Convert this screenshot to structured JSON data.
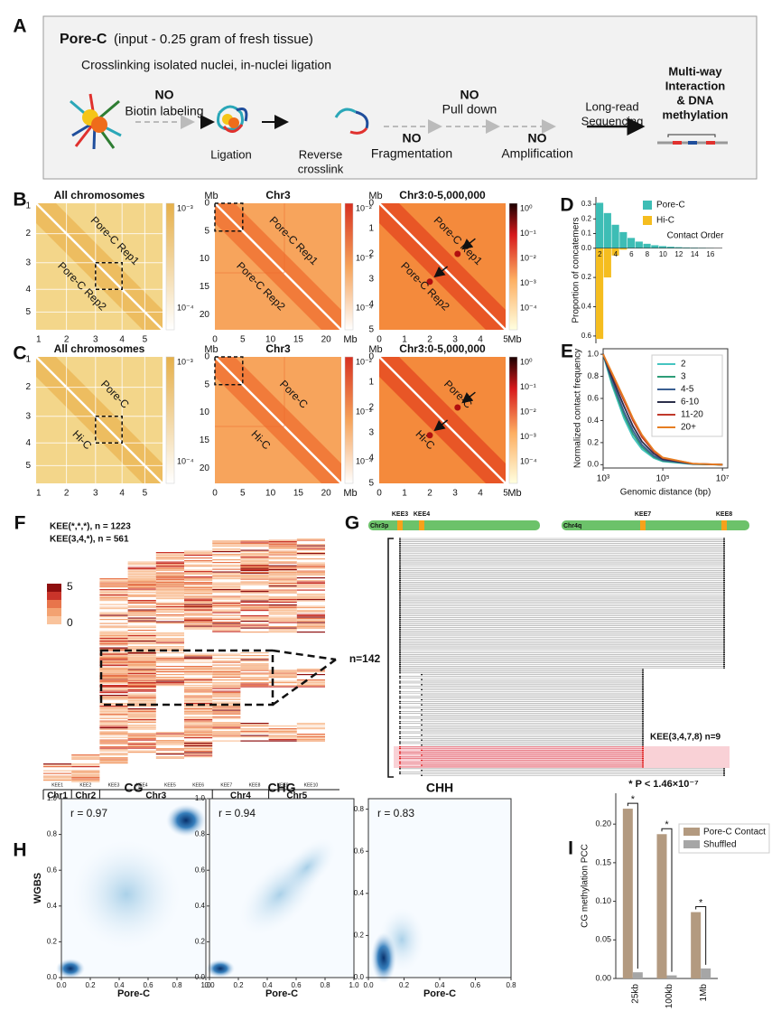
{
  "panel_labels": [
    "A",
    "B",
    "C",
    "D",
    "E",
    "F",
    "G",
    "H",
    "I"
  ],
  "schematic": {
    "title": "Pore-C",
    "subtitle": "(input - 0.25 gram of fresh tissue)",
    "note": "Crosslinking isolated nuclei, in-nuclei ligation",
    "ligation": "Ligation",
    "reverse_crosslink": [
      "Reverse",
      "crosslink"
    ],
    "skipped": [
      {
        "no": "NO",
        "label": "Biotin labeling"
      },
      {
        "no": "NO",
        "label": "Fragmentation"
      },
      {
        "no": "NO",
        "label": "Pull down"
      },
      {
        "no": "NO",
        "label": "Amplification"
      }
    ],
    "sequencing": [
      "Long-read",
      "Sequencing"
    ],
    "output_red": [
      "Multi-way",
      "Interaction"
    ],
    "output_black": [
      "& DNA",
      "methylation"
    ]
  },
  "contact_maps": {
    "B": [
      {
        "title": "All chromosomes",
        "ticks": [
          "1",
          "2",
          "3",
          "4",
          "5"
        ],
        "colorbar": [
          "10⁻³",
          "10⁻⁴"
        ],
        "upper": "Pore-C Rep1",
        "lower": "Pore-C Rep2"
      },
      {
        "title": "Chr3",
        "unit": "Mb",
        "ticks": [
          "0",
          "5",
          "10",
          "15",
          "20"
        ],
        "colorbar": [
          "10⁻²",
          "10⁻³",
          "10⁻⁴"
        ],
        "upper": "Pore-C Rep1",
        "lower": "Pore-C Rep2"
      },
      {
        "title": "Chr3:0-5,000,000",
        "unit": "Mb",
        "ticks": [
          "0",
          "1",
          "2",
          "3",
          "4",
          "5"
        ],
        "colorbar": [
          "10⁰",
          "10⁻¹",
          "10⁻²",
          "10⁻³",
          "10⁻⁴"
        ],
        "upper": "Pore-C Rep1",
        "lower": "Pore-C Rep2"
      }
    ],
    "C": [
      {
        "title": "All chromosomes",
        "ticks": [
          "1",
          "2",
          "3",
          "4",
          "5"
        ],
        "colorbar": [
          "10⁻³",
          "10⁻⁴"
        ],
        "upper": "Pore-C",
        "lower": "Hi-C"
      },
      {
        "title": "Chr3",
        "unit": "Mb",
        "ticks": [
          "0",
          "5",
          "10",
          "15",
          "20"
        ],
        "colorbar": [
          "10⁻²",
          "10⁻³",
          "10⁻⁴"
        ],
        "upper": "Pore-C",
        "lower": "Hi-C"
      },
      {
        "title": "Chr3:0-5,000,000",
        "unit": "Mb",
        "ticks": [
          "0",
          "1",
          "2",
          "3",
          "4",
          "5"
        ],
        "colorbar": [
          "10⁰",
          "10⁻¹",
          "10⁻²",
          "10⁻³",
          "10⁻⁴"
        ],
        "upper": "Pore-C",
        "lower": "Hi-C"
      }
    ]
  },
  "kee_heatmap": {
    "labels": [
      "KEE(*,*,*), n = 1223",
      "KEE(3,4,*), n = 561"
    ],
    "scale": [
      "5",
      "0"
    ],
    "columns": [
      "KEE1",
      "KEE2",
      "KEE3",
      "KEE4",
      "KEE5",
      "KEE6",
      "KEE7",
      "KEE8",
      "KEE9",
      "KEE10"
    ],
    "chromosomes": [
      "Chr1",
      "Chr2",
      "Chr3",
      "Chr4",
      "Chr5"
    ]
  },
  "reads": {
    "arms": [
      "Chr3p",
      "Chr4q"
    ],
    "elements": [
      "KEE3",
      "KEE4",
      "KEE7",
      "KEE8"
    ],
    "count": "n=142",
    "subset": "KEE(3,4,7,8) n=9"
  },
  "chart_data": [
    {
      "type": "bar",
      "categories": [
        "2",
        null,
        "4",
        null,
        "6",
        null,
        "8",
        null,
        "10",
        null,
        "12",
        null,
        "14",
        null,
        "16",
        null
      ],
      "series": [
        {
          "name": "Pore-C",
          "color": "#3dbdb5",
          "values": [
            0.31,
            0.24,
            0.16,
            0.11,
            0.07,
            0.045,
            0.03,
            0.02,
            0.014,
            0.01,
            0.007,
            0.005,
            0.004,
            0.003,
            0.002,
            0.001
          ]
        },
        {
          "name": "Hi-C",
          "color": "#f5bd1f",
          "values": [
            -0.62,
            -0.2,
            -0.05,
            -0.01,
            0,
            0,
            0,
            0,
            0,
            0,
            0,
            0,
            0,
            0,
            0,
            0
          ]
        }
      ],
      "x_label": "Contact Order",
      "y_label": "Proportion of concatemers",
      "ylim": [
        -0.65,
        0.35
      ],
      "yticks": [
        0.3,
        0.2,
        0.1,
        {
          "value": 0,
          "label": "0.0"
        },
        {
          "value": -0.2,
          "label": "0.2"
        },
        {
          "value": -0.4,
          "label": "0.4"
        },
        {
          "value": -0.6,
          "label": "0.6"
        }
      ],
      "legend": "upper right"
    },
    {
      "type": "line",
      "x": [
        1000,
        2000,
        5000,
        10000,
        20000,
        50000,
        100000,
        1000000,
        10000000
      ],
      "series": [
        {
          "name": "2",
          "color": "#45c4c0",
          "values": [
            1.0,
            0.72,
            0.42,
            0.25,
            0.14,
            0.06,
            0.03,
            0.005,
            0.0
          ]
        },
        {
          "name": "3",
          "color": "#2e9d78",
          "values": [
            1.0,
            0.74,
            0.45,
            0.28,
            0.16,
            0.07,
            0.035,
            0.006,
            0.0
          ]
        },
        {
          "name": "4-5",
          "color": "#3b5f92",
          "values": [
            1.0,
            0.76,
            0.48,
            0.31,
            0.18,
            0.08,
            0.04,
            0.007,
            0.0
          ]
        },
        {
          "name": "6-10",
          "color": "#2b2f4a",
          "values": [
            1.0,
            0.79,
            0.53,
            0.35,
            0.21,
            0.1,
            0.05,
            0.008,
            0.0
          ]
        },
        {
          "name": "11-20",
          "color": "#c0392b",
          "values": [
            1.0,
            0.82,
            0.58,
            0.4,
            0.25,
            0.12,
            0.06,
            0.01,
            0.0
          ]
        },
        {
          "name": "20+",
          "color": "#e67e22",
          "values": [
            1.0,
            0.83,
            0.6,
            0.42,
            0.27,
            0.13,
            0.065,
            0.01,
            0.0
          ]
        }
      ],
      "x_log": true,
      "xlim": [
        1000,
        15000000
      ],
      "xticks": [
        {
          "value": 1000,
          "label": "10³"
        },
        {
          "value": 100000,
          "label": "10⁵"
        },
        {
          "value": 10000000,
          "label": "10⁷"
        }
      ],
      "ylim": [
        -0.03,
        1.05
      ],
      "yticks": [
        {
          "value": 0,
          "label": "0.0"
        },
        0.2,
        0.4,
        0.6,
        0.8,
        {
          "value": 1,
          "label": "1.0"
        }
      ],
      "x_label": "Genomic distance (bp)",
      "y_label": "Normalized contact frequency",
      "legend": "upper right"
    },
    {
      "type": "grouped_bar",
      "title": "* P < 1.46×10⁻⁷",
      "categories": [
        "25kb",
        "100kb",
        "1Mb"
      ],
      "series": [
        {
          "name": "Pore-C Contact",
          "color": "#b39a80",
          "values": [
            0.22,
            0.187,
            0.086
          ]
        },
        {
          "name": "Shuffled",
          "color": "#a6a6a6",
          "values": [
            0.008,
            0.004,
            0.013
          ]
        }
      ],
      "y_label": "CG methylation PCC",
      "ylim": [
        0,
        0.24
      ],
      "yticks": [
        {
          "value": 0,
          "label": "0.00"
        },
        0.05,
        {
          "value": 0.1,
          "label": "0.10"
        },
        0.15,
        {
          "value": 0.2,
          "label": "0.20"
        }
      ],
      "annotations": [
        "*",
        "*",
        "*"
      ],
      "legend": "upper right"
    },
    {
      "type": "density",
      "title": "CG",
      "annotation": "r = 0.97",
      "x_label": "Pore-C",
      "y_label": "WGBS",
      "xlim": [
        0,
        1
      ],
      "ylim": [
        0,
        1
      ],
      "xticks": [
        {
          "value": 0,
          "label": "0.0"
        },
        0.2,
        0.4,
        0.6,
        0.8,
        {
          "value": 1,
          "label": "1.0"
        }
      ],
      "yticks": [
        {
          "value": 0,
          "label": "0.0"
        },
        0.2,
        0.4,
        0.6,
        0.8,
        {
          "value": 1,
          "label": "1.0"
        }
      ]
    },
    {
      "type": "density",
      "title": "CHG",
      "annotation": "r = 0.94",
      "x_label": "Pore-C",
      "xlim": [
        0,
        1
      ],
      "ylim": [
        0,
        1
      ],
      "xticks": [
        {
          "value": 0,
          "label": "0.0"
        },
        0.2,
        0.4,
        0.6,
        0.8,
        {
          "value": 1,
          "label": "1.0"
        }
      ],
      "yticks": [
        {
          "value": 0,
          "label": "0.0"
        },
        0.2,
        0.4,
        0.6,
        0.8,
        {
          "value": 1,
          "label": "1.0"
        }
      ]
    },
    {
      "type": "density",
      "title": "CHH",
      "annotation": "r = 0.83",
      "x_label": "Pore-C",
      "xlim": [
        0,
        0.8
      ],
      "ylim": [
        0,
        0.85
      ],
      "xticks": [
        {
          "value": 0,
          "label": "0.0"
        },
        0.2,
        0.4,
        0.6,
        0.8
      ],
      "yticks": [
        {
          "value": 0,
          "label": "0.0"
        },
        0.2,
        0.4,
        0.6,
        0.8
      ]
    }
  ]
}
